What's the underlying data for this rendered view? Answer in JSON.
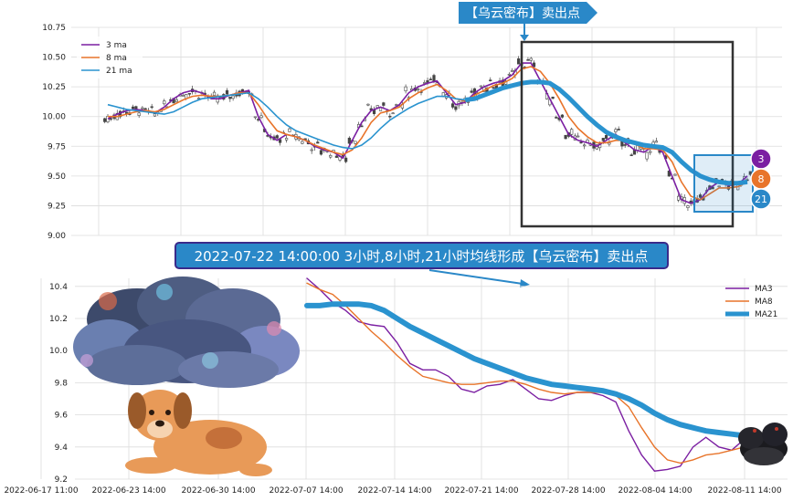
{
  "top_banner": {
    "text": "【乌云密布】卖出点"
  },
  "mid_banner": {
    "text": "2022-07-22 14:00:00 3小时,8小时,21小时均线形成【乌云密布】卖出点"
  },
  "badges": [
    "3",
    "8",
    "21"
  ],
  "colors": {
    "ma3": "#7b1fa2",
    "ma8": "#e8742a",
    "ma21": "#2a93cf",
    "banner": "#2a88c8",
    "frame": "#333333"
  },
  "icons": {
    "cloud": "storm-cloud-icon",
    "dog": "dog-icon",
    "dark_cloud": "dark-cloud-icon"
  },
  "chart_data": [
    {
      "type": "line",
      "subtype": "candlestick-with-moving-averages",
      "ylim": [
        9.0,
        10.75
      ],
      "y_ticks": [
        "9.00",
        "9.25",
        "9.50",
        "9.75",
        "10.00",
        "10.25",
        "10.50",
        "10.75"
      ],
      "legend": {
        "placement": "top-left",
        "entries": [
          "3 ma",
          "8 ma",
          "21 ma"
        ]
      },
      "grid": true,
      "series": [
        {
          "name": "3 ma",
          "values": [
            9.98,
            10.02,
            10.05,
            10.06,
            10.05,
            10.03,
            10.08,
            10.15,
            10.2,
            10.22,
            10.2,
            10.15,
            10.15,
            10.18,
            10.2,
            10.22,
            10.0,
            9.85,
            9.8,
            9.85,
            9.83,
            9.8,
            9.75,
            9.72,
            9.7,
            9.65,
            9.8,
            9.95,
            10.05,
            10.08,
            10.05,
            10.1,
            10.2,
            10.25,
            10.28,
            10.3,
            10.2,
            10.1,
            10.12,
            10.2,
            10.25,
            10.28,
            10.3,
            10.35,
            10.45,
            10.45,
            10.3,
            10.15,
            10.0,
            9.85,
            9.8,
            9.78,
            9.75,
            9.8,
            9.85,
            9.78,
            9.72,
            9.7,
            9.75,
            9.7,
            9.5,
            9.3,
            9.27,
            9.3,
            9.4,
            9.45,
            9.42,
            9.43,
            9.5
          ]
        },
        {
          "name": "8 ma",
          "values": [
            10.0,
            10.0,
            10.02,
            10.04,
            10.05,
            10.04,
            10.06,
            10.1,
            10.14,
            10.17,
            10.18,
            10.17,
            10.17,
            10.18,
            10.2,
            10.2,
            10.1,
            9.98,
            9.88,
            9.85,
            9.83,
            9.8,
            9.76,
            9.73,
            9.7,
            9.68,
            9.72,
            9.82,
            9.95,
            10.03,
            10.05,
            10.08,
            10.15,
            10.2,
            10.24,
            10.27,
            10.22,
            10.15,
            10.13,
            10.18,
            10.22,
            10.26,
            10.28,
            10.32,
            10.4,
            10.42,
            10.38,
            10.28,
            10.15,
            10.0,
            9.9,
            9.83,
            9.78,
            9.78,
            9.8,
            9.8,
            9.77,
            9.73,
            9.73,
            9.72,
            9.62,
            9.45,
            9.33,
            9.3,
            9.35,
            9.4,
            9.4,
            9.41,
            9.45
          ]
        },
        {
          "name": "21 ma",
          "values": [
            10.1,
            10.08,
            10.06,
            10.05,
            10.04,
            10.03,
            10.02,
            10.04,
            10.08,
            10.12,
            10.15,
            10.16,
            10.17,
            10.18,
            10.19,
            10.2,
            10.15,
            10.08,
            10.0,
            9.93,
            9.88,
            9.85,
            9.82,
            9.79,
            9.76,
            9.74,
            9.73,
            9.76,
            9.82,
            9.9,
            9.97,
            10.02,
            10.07,
            10.11,
            10.14,
            10.17,
            10.17,
            10.15,
            10.14,
            10.15,
            10.18,
            10.21,
            10.24,
            10.26,
            10.28,
            10.29,
            10.29,
            10.28,
            10.23,
            10.16,
            10.08,
            10.0,
            9.93,
            9.87,
            9.83,
            9.8,
            9.78,
            9.76,
            9.75,
            9.74,
            9.7,
            9.62,
            9.55,
            9.5,
            9.47,
            9.45,
            9.44,
            9.44,
            9.45
          ]
        }
      ]
    },
    {
      "type": "line",
      "ylim": [
        9.2,
        10.45
      ],
      "y_ticks": [
        "9.2",
        "9.4",
        "9.6",
        "9.8",
        "10.0",
        "10.2",
        "10.4"
      ],
      "x_ticks": [
        "2022-06-17 11:00",
        "2022-06-23 14:00",
        "2022-06-30 14:00",
        "2022-07-07 14:00",
        "2022-07-14 14:00",
        "2022-07-21 14:00",
        "2022-07-28 14:00",
        "2022-08-04 14:00",
        "2022-08-11 14:00"
      ],
      "legend": {
        "placement": "top-right",
        "entries": [
          "MA3",
          "MA8",
          "MA21"
        ]
      },
      "grid": true,
      "series": [
        {
          "name": "MA3",
          "values": [
            10.45,
            10.38,
            10.3,
            10.25,
            10.18,
            10.16,
            10.15,
            10.05,
            9.92,
            9.88,
            9.88,
            9.84,
            9.76,
            9.74,
            9.78,
            9.79,
            9.82,
            9.76,
            9.7,
            9.69,
            9.72,
            9.74,
            9.74,
            9.72,
            9.68,
            9.5,
            9.35,
            9.25,
            9.26,
            9.28,
            9.4,
            9.46,
            9.4,
            9.38,
            9.45
          ]
        },
        {
          "name": "MA8",
          "values": [
            10.42,
            10.38,
            10.35,
            10.28,
            10.2,
            10.12,
            10.05,
            9.97,
            9.9,
            9.84,
            9.82,
            9.8,
            9.79,
            9.79,
            9.8,
            9.81,
            9.81,
            9.79,
            9.76,
            9.74,
            9.73,
            9.74,
            9.74,
            9.74,
            9.72,
            9.65,
            9.52,
            9.4,
            9.32,
            9.3,
            9.32,
            9.35,
            9.36,
            9.38,
            9.4
          ]
        },
        {
          "name": "MA21",
          "values": [
            10.28,
            10.28,
            10.29,
            10.29,
            10.29,
            10.28,
            10.25,
            10.2,
            10.15,
            10.11,
            10.07,
            10.03,
            9.99,
            9.95,
            9.92,
            9.89,
            9.86,
            9.83,
            9.81,
            9.79,
            9.78,
            9.77,
            9.76,
            9.75,
            9.73,
            9.7,
            9.66,
            9.61,
            9.57,
            9.54,
            9.52,
            9.5,
            9.49,
            9.48,
            9.47
          ]
        }
      ]
    }
  ]
}
